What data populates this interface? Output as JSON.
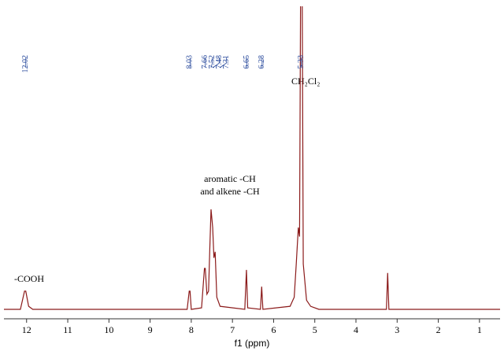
{
  "chart_data": {
    "type": "line",
    "x_label": "f1 (ppm)",
    "xlim": [
      12.55,
      0.5
    ],
    "xticks": [
      12,
      11,
      10,
      9,
      8,
      7,
      6,
      5,
      4,
      3,
      2,
      1
    ],
    "ylim": [
      0,
      100
    ],
    "color": "#8b1a1a",
    "peak_label_color": "#2f4f9f",
    "peaks": [
      12.02,
      8.03,
      7.66,
      7.52,
      7.48,
      7.31,
      6.65,
      6.28,
      5.33
    ],
    "annotations": [
      "-COOH",
      "aromatic -CH",
      "and alkene -CH",
      "CH₂Cl₂"
    ],
    "x": [
      12.55,
      12.15,
      12.05,
      12.02,
      11.95,
      11.85,
      8.1,
      8.05,
      8.03,
      8.0,
      7.75,
      7.68,
      7.66,
      7.62,
      7.58,
      7.55,
      7.52,
      7.48,
      7.45,
      7.42,
      7.38,
      7.3,
      6.7,
      6.66,
      6.63,
      6.32,
      6.29,
      6.26,
      5.6,
      5.5,
      5.45,
      5.4,
      5.37,
      5.34,
      5.31,
      5.28,
      5.2,
      5.1,
      4.9,
      3.26,
      3.23,
      3.2,
      0.5
    ],
    "values": [
      0,
      0,
      6,
      6,
      1,
      0,
      0,
      6,
      6,
      0,
      0.5,
      13.5,
      13.5,
      5,
      6,
      20,
      33,
      27,
      17,
      19,
      4,
      1,
      0,
      13,
      0.5,
      0,
      7.5,
      0,
      1,
      4,
      15,
      27,
      24,
      120,
      120,
      15,
      3,
      1,
      0,
      0,
      12,
      0,
      0
    ]
  }
}
